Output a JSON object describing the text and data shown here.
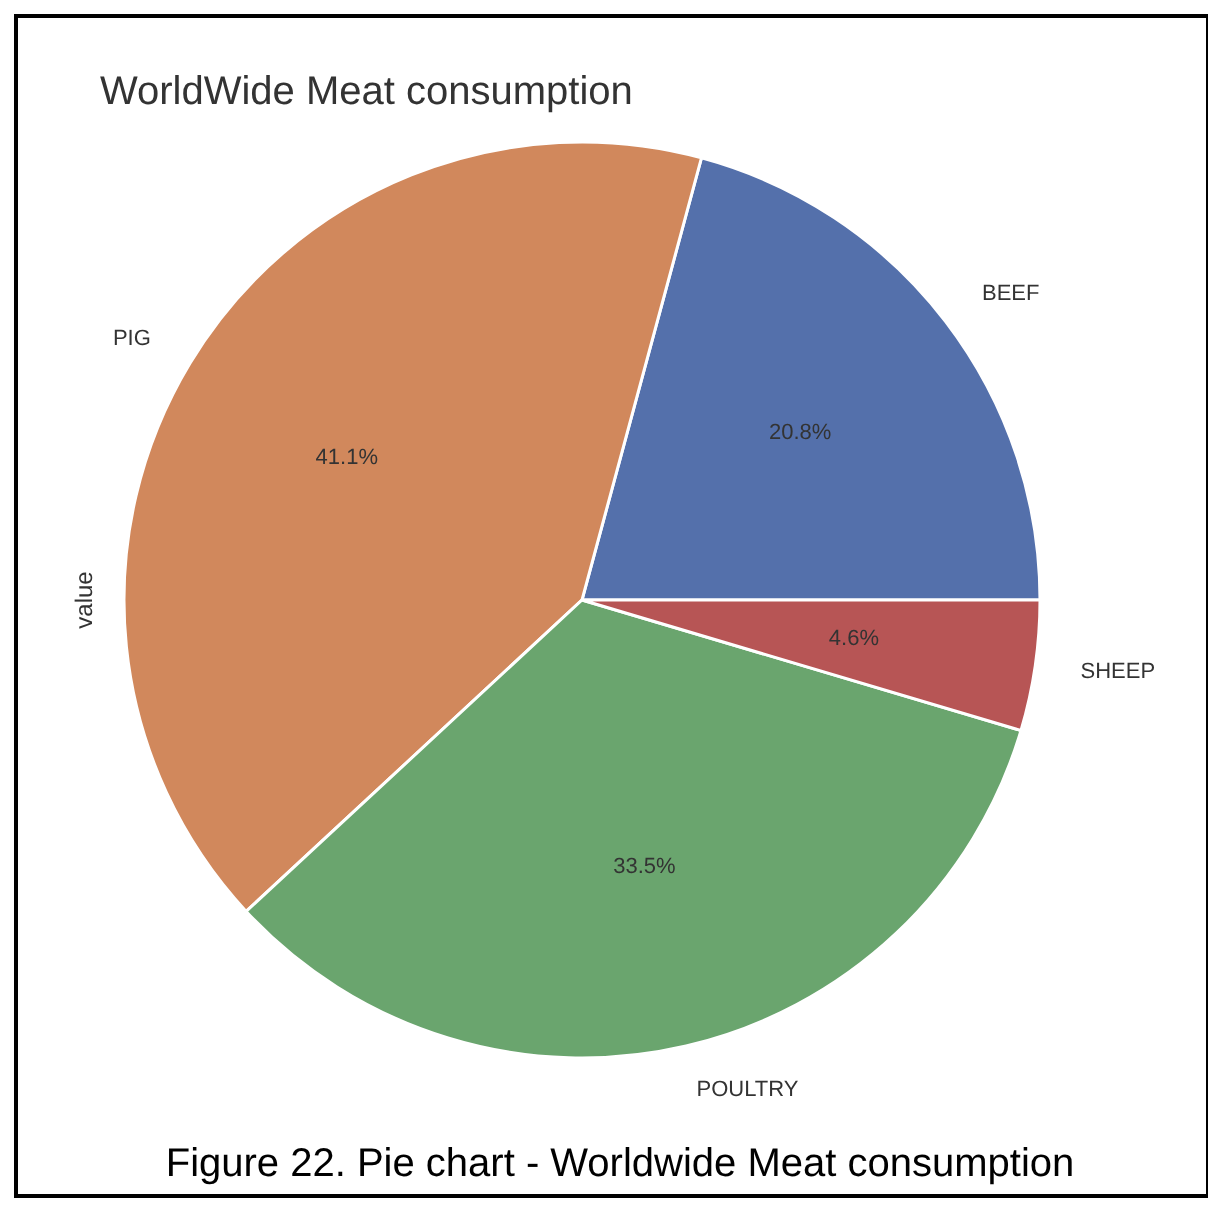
{
  "chart_data": {
    "type": "pie",
    "title": "WorldWide Meat consumption",
    "ylabel": "value",
    "categories": [
      "BEEF",
      "PIG",
      "POULTRY",
      "SHEEP"
    ],
    "values": [
      20.8,
      41.1,
      33.5,
      4.6
    ],
    "colors": [
      "#5470ab",
      "#d1885c",
      "#6aa56e",
      "#b75555"
    ],
    "value_labels": [
      "20.8%",
      "41.1%",
      "33.5%",
      "4.6%"
    ],
    "annotations": [
      "Figure 22. Pie chart - Worldwide Meat consumption"
    ]
  }
}
